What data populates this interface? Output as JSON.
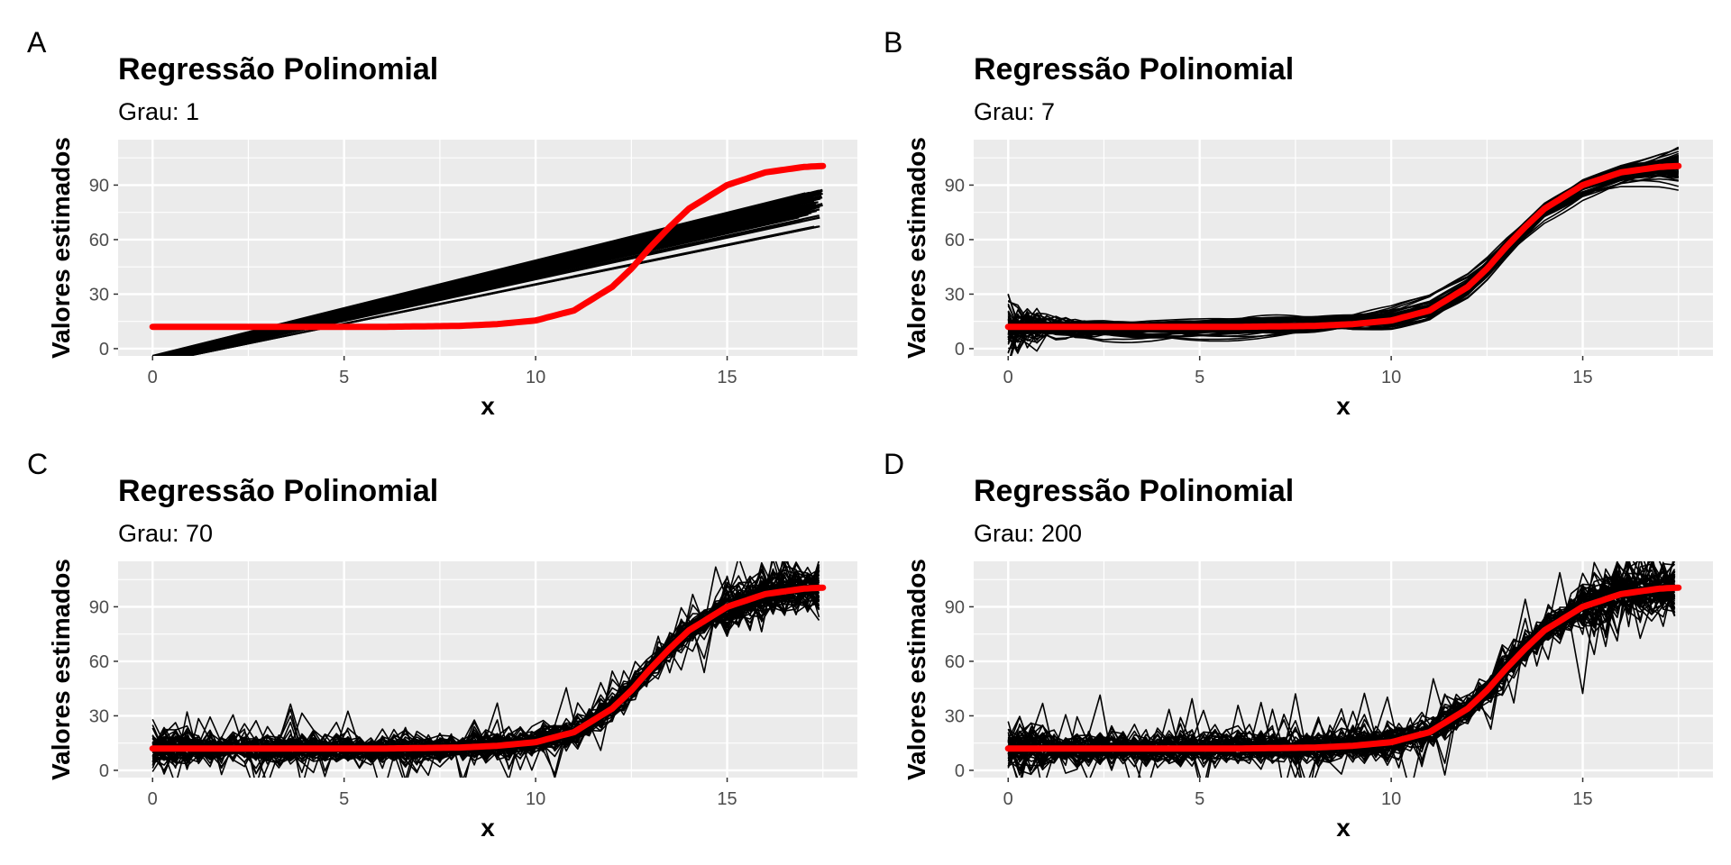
{
  "colors": {
    "panel_bg": "#ebebeb",
    "grid": "#ffffff",
    "sims": "#000000",
    "truth": "#ff0000",
    "tick_text": "#4d4d4d"
  },
  "panels": [
    {
      "tag": "A",
      "title": "Regressão Polinomial",
      "subtitle": "Grau:  1",
      "xlabel": "x",
      "ylabel": "Valores estimados"
    },
    {
      "tag": "B",
      "title": "Regressão Polinomial",
      "subtitle": "Grau:  7",
      "xlabel": "x",
      "ylabel": "Valores estimados"
    },
    {
      "tag": "C",
      "title": "Regressão Polinomial",
      "subtitle": "Grau:  70",
      "xlabel": "x",
      "ylabel": "Valores estimados"
    },
    {
      "tag": "D",
      "title": "Regressão Polinomial",
      "subtitle": "Grau:  200",
      "xlabel": "x",
      "ylabel": "Valores estimados"
    }
  ],
  "chart_data": [
    {
      "type": "line",
      "degree": 1,
      "xlim": [
        -0.9,
        18.4
      ],
      "ylim": [
        -4,
        115
      ],
      "xticks": [
        0,
        5,
        10,
        15
      ],
      "yticks": [
        0,
        30,
        60,
        90
      ],
      "grid": true,
      "legend": "none",
      "truth_curve": {
        "x": [
          0,
          2,
          4,
          6,
          8,
          9,
          10,
          11,
          12,
          12.5,
          13,
          13.5,
          14,
          15,
          16,
          17,
          17.5
        ],
        "y": [
          12,
          12,
          12,
          12,
          12.5,
          13.5,
          15.5,
          21,
          34,
          44,
          56,
          67,
          77,
          90,
          97,
          100,
          100.5
        ]
      },
      "fitted_range": {
        "x": [
          0,
          17.5
        ],
        "y_low_start": -8,
        "y_high_start": -4,
        "y_low_end": 66,
        "y_high_end": 88
      }
    },
    {
      "type": "line",
      "degree": 7,
      "xlim": [
        -0.9,
        18.4
      ],
      "ylim": [
        -4,
        115
      ],
      "xticks": [
        0,
        5,
        10,
        15
      ],
      "yticks": [
        0,
        30,
        60,
        90
      ],
      "grid": true,
      "legend": "none",
      "truth_curve": {
        "x": [
          0,
          2,
          4,
          6,
          8,
          9,
          10,
          11,
          12,
          12.5,
          13,
          13.5,
          14,
          15,
          16,
          17,
          17.5
        ],
        "y": [
          12,
          12,
          12,
          12,
          12.5,
          13.5,
          15.5,
          21,
          34,
          44,
          56,
          67,
          77,
          90,
          97,
          100,
          100.5
        ]
      }
    },
    {
      "type": "line",
      "degree": 70,
      "xlim": [
        -0.9,
        18.4
      ],
      "ylim": [
        -4,
        115
      ],
      "xticks": [
        0,
        5,
        10,
        15
      ],
      "yticks": [
        0,
        30,
        60,
        90
      ],
      "grid": true,
      "legend": "none",
      "truth_curve": {
        "x": [
          0,
          2,
          4,
          6,
          8,
          9,
          10,
          11,
          12,
          12.5,
          13,
          13.5,
          14,
          15,
          16,
          17,
          17.5
        ],
        "y": [
          12,
          12,
          12,
          12,
          12.5,
          13.5,
          15.5,
          21,
          34,
          44,
          56,
          67,
          77,
          90,
          97,
          100,
          100.5
        ]
      }
    },
    {
      "type": "line",
      "degree": 200,
      "xlim": [
        -0.9,
        18.4
      ],
      "ylim": [
        -4,
        115
      ],
      "xticks": [
        0,
        5,
        10,
        15
      ],
      "yticks": [
        0,
        30,
        60,
        90
      ],
      "grid": true,
      "legend": "none",
      "truth_curve": {
        "x": [
          0,
          2,
          4,
          6,
          8,
          9,
          10,
          11,
          12,
          12.5,
          13,
          13.5,
          14,
          15,
          16,
          17,
          17.5
        ],
        "y": [
          12,
          12,
          12,
          12,
          12.5,
          13.5,
          15.5,
          21,
          34,
          44,
          56,
          67,
          77,
          90,
          97,
          100,
          100.5
        ]
      }
    }
  ]
}
